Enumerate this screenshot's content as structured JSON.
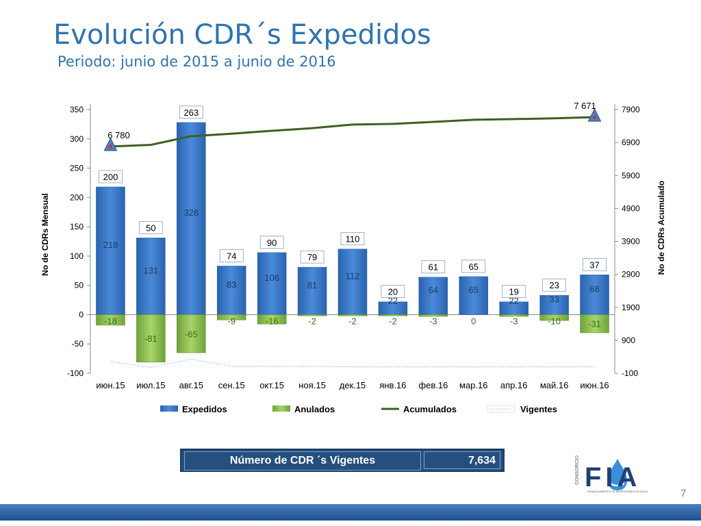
{
  "title": "Evolución CDR´s Expedidos",
  "subtitle": "Periodo: junio de 2015 a junio de 2016",
  "colors": {
    "title": "#2f73ae",
    "expedidos": "#3b78c8",
    "anulados": "#8dc04f",
    "acumulados": "#3f5f1f",
    "vigentes": "#a9c4e8",
    "banner": "#244f7f"
  },
  "chart_data": {
    "type": "bar",
    "categories": [
      "июн.15",
      "июл.15",
      "авг.15",
      "сен.15",
      "окт.15",
      "ноя.15",
      "дек.15",
      "янв.16",
      "фев.16",
      "мар.16",
      "апр.16",
      "май.16",
      "июн.16"
    ],
    "series": [
      {
        "name": "Expedidos",
        "type": "bar",
        "axis": "left",
        "values": [
          218,
          131,
          328,
          83,
          106,
          81,
          112,
          22,
          64,
          65,
          22,
          33,
          68
        ]
      },
      {
        "name": "Anulados",
        "type": "bar",
        "axis": "left",
        "values": [
          -18,
          -81,
          -65,
          -9,
          -16,
          -2,
          -2,
          -2,
          -3,
          0,
          -3,
          -10,
          -31
        ]
      },
      {
        "name": "Acumulados",
        "type": "line",
        "axis": "right",
        "values": [
          6780,
          6830,
          7093,
          7167,
          7257,
          7336,
          7446,
          7466,
          7527,
          7592,
          7611,
          7634,
          7671
        ]
      },
      {
        "name": "Vigentes",
        "type": "line",
        "axis": "left",
        "values": [
          -80,
          -90,
          -76,
          -88,
          -88,
          -88,
          -89,
          -89,
          -89,
          -89,
          -89,
          -89,
          -89
        ]
      }
    ],
    "net_labels": [
      200,
      50,
      263,
      74,
      90,
      79,
      110,
      20,
      61,
      65,
      19,
      23,
      37
    ],
    "acumulados_labels": {
      "first": "6 780",
      "last": "7 671"
    },
    "ylabel": "No de CDRs Mensual",
    "y2label": "No de CDRs Acumulado",
    "ylim": [
      -100,
      350
    ],
    "yticks": [
      -100,
      -50,
      0,
      50,
      100,
      150,
      200,
      250,
      300,
      350
    ],
    "y2lim": [
      -100,
      7900
    ],
    "y2ticks": [
      -100,
      900,
      1900,
      2900,
      3900,
      4900,
      5900,
      6900,
      7900
    ],
    "legend_position": "bottom",
    "grid": false
  },
  "vigentes_box": {
    "label": "Número de CDR ´s Vigentes",
    "value": "7,634"
  },
  "logo": {
    "brand": "FIA",
    "side_text": "CONSORCIO",
    "tagline": "FINANCIAMIENTO DE INVERSIONES EN AGUA"
  },
  "page_number": "7"
}
